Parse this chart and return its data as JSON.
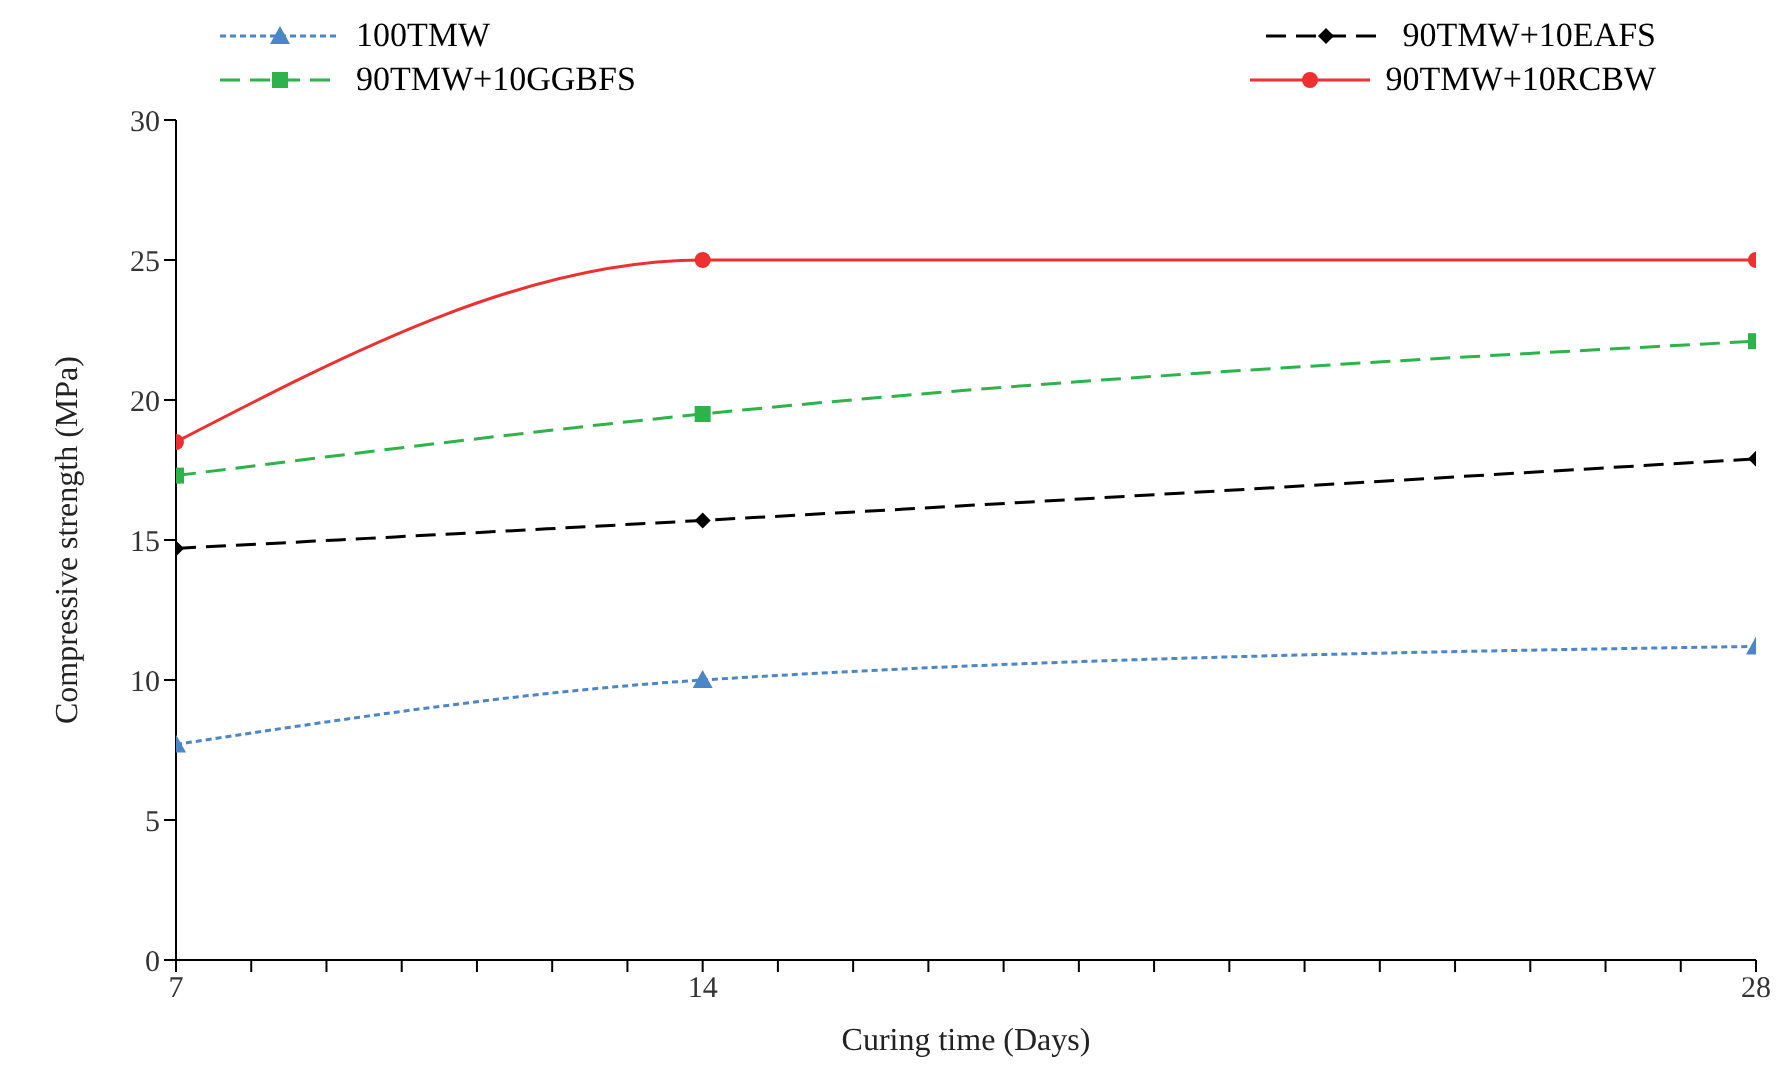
{
  "chart_data": {
    "type": "line",
    "xlabel": "Curing time (Days)",
    "ylabel": "Compressive strength (MPa)",
    "x": [
      7,
      14,
      28
    ],
    "xlim": [
      7,
      28
    ],
    "xticks": [
      7,
      {
        "value": 8,
        "label": null
      },
      {
        "value": 9,
        "label": null
      },
      {
        "value": 10,
        "label": null
      },
      {
        "value": 11,
        "label": null
      },
      {
        "value": 12,
        "label": null
      },
      {
        "value": 13,
        "label": null
      },
      14,
      {
        "value": 15,
        "label": null
      },
      {
        "value": 16,
        "label": null
      },
      {
        "value": 17,
        "label": null
      },
      {
        "value": 18,
        "label": null
      },
      {
        "value": 19,
        "label": null
      },
      {
        "value": 20,
        "label": null
      },
      {
        "value": 21,
        "label": null
      },
      {
        "value": 22,
        "label": null
      },
      {
        "value": 23,
        "label": null
      },
      {
        "value": 24,
        "label": null
      },
      {
        "value": 25,
        "label": null
      },
      {
        "value": 26,
        "label": null
      },
      {
        "value": 27,
        "label": null
      },
      28
    ],
    "ylim": [
      0,
      30
    ],
    "yticks": [
      0,
      5,
      10,
      15,
      20,
      25,
      30
    ],
    "grid": false,
    "legend": "top",
    "series": [
      {
        "name": "100TMW",
        "color": "#4a86c8",
        "values": [
          7.7,
          10.0,
          11.2
        ],
        "marker": "triangle",
        "line_style": "dotted"
      },
      {
        "name": "90TMW+10EAFS",
        "color": "#000000",
        "values": [
          14.7,
          15.7,
          17.9
        ],
        "marker": "diamond",
        "line_style": "dashed"
      },
      {
        "name": "90TMW+10GGBFS",
        "color": "#2db34a",
        "values": [
          17.3,
          19.5,
          22.1
        ],
        "marker": "square",
        "line_style": "dashed"
      },
      {
        "name": "90TMW+10RCBW",
        "color": "#ee3030",
        "values": [
          18.5,
          25.0,
          25.0
        ],
        "marker": "circle",
        "line_style": "solid"
      }
    ]
  }
}
